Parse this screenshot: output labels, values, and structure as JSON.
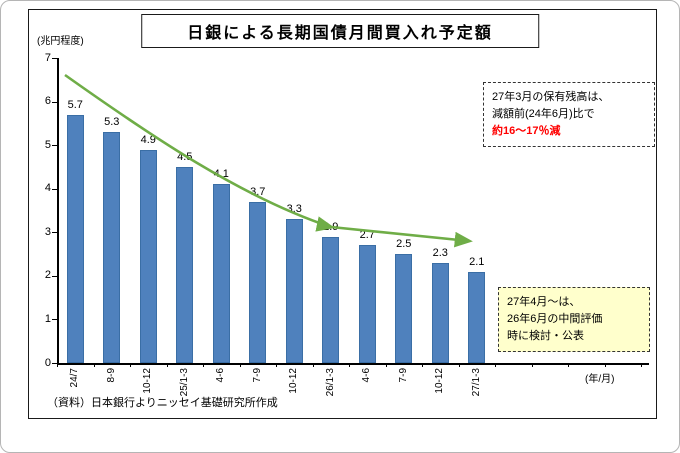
{
  "chart_data": {
    "type": "bar",
    "title": "日銀による長期国債月間買入れ予定額",
    "categories": [
      "24/7",
      "8-9",
      "10-12",
      "25/1-3",
      "4-6",
      "7-9",
      "10-12",
      "26/1-3",
      "4-6",
      "7-9",
      "10-12",
      "27/1-3"
    ],
    "values": [
      5.7,
      5.3,
      4.9,
      4.5,
      4.1,
      3.7,
      3.3,
      2.9,
      2.7,
      2.5,
      2.3,
      2.1
    ],
    "xlabel": "(年/月)",
    "ylabel": "(兆円程度)",
    "ylim": [
      0,
      7
    ],
    "yticks": [
      0,
      1,
      2,
      3,
      4,
      5,
      6,
      7
    ],
    "grid": false,
    "legend": "none"
  },
  "annotations": {
    "top": {
      "line1": "27年3月の保有残高は、",
      "line2": "減額前(24年6月)比で",
      "line3": "約16～17％減"
    },
    "bottom": {
      "line1": "27年4月～は、",
      "line2": "26年6月の中間評価",
      "line3": "時に検討・公表"
    }
  },
  "source_note": "（資料）日本銀行よりニッセイ基礎研究所作成",
  "colors": {
    "bar": "#4f81bd",
    "arrow": "#6fad47",
    "highlight": "#ff0000",
    "note_bg": "#ffffcc"
  }
}
